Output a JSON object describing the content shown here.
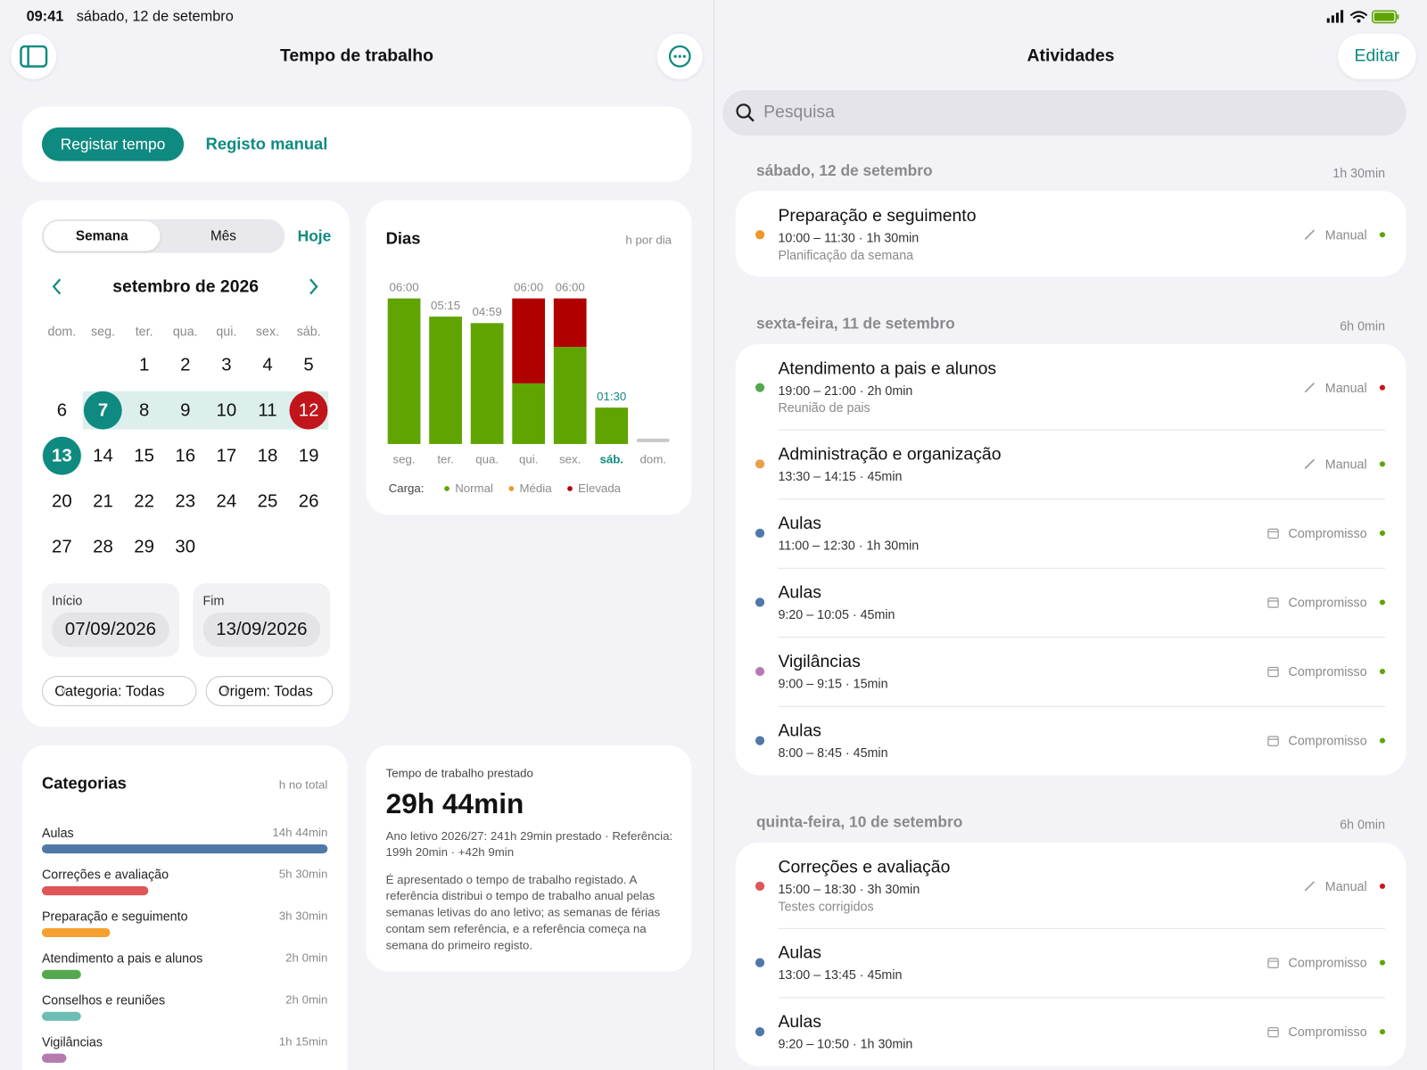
{
  "status_bar": {
    "time": "09:41",
    "date": "sábado, 12 de setembro"
  },
  "left": {
    "title": "Tempo de trabalho",
    "buttons": [
      "Registar tempo",
      "Registo manual"
    ]
  },
  "calendar": {
    "tabs": [
      "Semana",
      "Mês"
    ],
    "today_button": "Hoje",
    "month": "setembro de 2026",
    "weekdays": [
      "dom.",
      "seg.",
      "ter.",
      "qua.",
      "qui.",
      "sex.",
      "sáb."
    ],
    "weeks": [
      [
        null,
        null,
        1,
        2,
        3,
        4,
        5
      ],
      [
        6,
        7,
        8,
        9,
        10,
        11,
        12
      ],
      [
        13,
        14,
        15,
        16,
        17,
        18,
        19
      ],
      [
        20,
        21,
        22,
        23,
        24,
        25,
        26
      ],
      [
        27,
        28,
        29,
        30,
        null,
        null,
        null
      ]
    ],
    "range_start": 7,
    "range_end": 13,
    "today": 12,
    "start_label": "Início",
    "start": "07/09/2026",
    "end_label": "Fim",
    "end": "13/09/2026",
    "filters": [
      "Categoria: Todas",
      "Origem: Todas"
    ]
  },
  "chart_data": [
    {
      "type": "bar",
      "stacked": true,
      "title": "Dias",
      "subtitle": "h por dia",
      "categories": [
        "seg.",
        "ter.",
        "qua.",
        "qui.",
        "sex.",
        "sáb.",
        "dom."
      ],
      "current_index": 5,
      "series": [
        {
          "name": "Normal",
          "color": "#5fa400",
          "values": [
            6,
            5.25,
            4.983,
            2.5,
            4,
            1.5,
            0
          ]
        },
        {
          "name": "Média",
          "color": "#f0962a",
          "values": [
            0,
            0,
            0,
            0,
            0,
            0,
            0
          ]
        },
        {
          "name": "Elevada",
          "color": "#b00000",
          "values": [
            0,
            0,
            0,
            3.5,
            2,
            0,
            0
          ]
        }
      ],
      "value_labels": [
        "06:00",
        "05:15",
        "04:59",
        "06:00",
        "06:00",
        "01:30",
        null
      ],
      "legend_title": "Carga:"
    },
    {
      "type": "bar",
      "orientation": "horizontal",
      "title": "Categorias",
      "subtitle": "h no total",
      "categories": [
        "Aulas",
        "Correções e avaliação",
        "Preparação e seguimento",
        "Atendimento a pais e alunos",
        "Conselhos e reuniões",
        "Vigilâncias"
      ],
      "values": [
        14.733,
        5.5,
        3.5,
        2,
        2,
        1.25
      ],
      "value_labels": [
        "14h 44min",
        "5h 30min",
        "3h 30min",
        "2h 0min",
        "2h 0min",
        "1h 15min"
      ],
      "colors": [
        "#4f78a8",
        "#e05555",
        "#f5a030",
        "#55a84f",
        "#6dbdb5",
        "#b57bb0"
      ]
    }
  ],
  "summary": {
    "label": "Tempo de trabalho prestado",
    "value": "29h 44min",
    "details": "Ano letivo 2026/27: 241h 29min prestado · Referência: 199h 20min · +42h 9min",
    "note": "É apresentado o tempo de trabalho registado. A referência distribui o tempo de trabalho anual pelas semanas letivas do ano letivo; as semanas de férias contam sem referência, e a referência começa na semana do primeiro registo."
  },
  "activities": {
    "title": "Atividades",
    "edit": "Editar",
    "search_placeholder": "Pesquisa",
    "groups": [
      {
        "date": "sábado, 12 de setembro",
        "total": "1h 30min",
        "items": [
          {
            "title": "Preparação e seguimento",
            "time": "10:00 – 11:30 · 1h 30min",
            "note": "Planificação da semana",
            "source": "Manual",
            "color": "#f0962a",
            "load_color": "#5fa400"
          }
        ]
      },
      {
        "date": "sexta-feira, 11 de setembro",
        "total": "6h 0min",
        "items": [
          {
            "title": "Atendimento a pais e alunos",
            "time": "19:00 – 21:00 · 2h 0min",
            "note": "Reunião de pais",
            "source": "Manual",
            "color": "#55a84f",
            "load_color": "#d0101a"
          },
          {
            "title": "Administração e organização",
            "time": "13:30 – 14:15 · 45min",
            "source": "Manual",
            "color": "#e8a04a",
            "load_color": "#5fa400"
          },
          {
            "title": "Aulas",
            "time": "11:00 – 12:30 · 1h 30min",
            "source": "Compromisso",
            "color": "#4f78a8",
            "load_color": "#5fa400"
          },
          {
            "title": "Aulas",
            "time": "9:20 – 10:05 · 45min",
            "source": "Compromisso",
            "color": "#4f78a8",
            "load_color": "#5fa400"
          },
          {
            "title": "Vigilâncias",
            "time": "9:00 – 9:15 · 15min",
            "source": "Compromisso",
            "color": "#b57bb0",
            "load_color": "#5fa400"
          },
          {
            "title": "Aulas",
            "time": "8:00 – 8:45 · 45min",
            "source": "Compromisso",
            "color": "#4f78a8",
            "load_color": "#5fa400"
          }
        ]
      },
      {
        "date": "quinta-feira, 10 de setembro",
        "total": "6h 0min",
        "items": [
          {
            "title": "Correções e avaliação",
            "time": "15:00 – 18:30 · 3h 30min",
            "note": "Testes corrigidos",
            "source": "Manual",
            "color": "#e05555",
            "load_color": "#d0101a"
          },
          {
            "title": "Aulas",
            "time": "13:00 – 13:45 · 45min",
            "source": "Compromisso",
            "color": "#4f78a8",
            "load_color": "#5fa400"
          },
          {
            "title": "Aulas",
            "time": "9:20 – 10:50 · 1h 30min",
            "source": "Compromisso",
            "color": "#4f78a8",
            "load_color": "#5fa400"
          }
        ]
      }
    ]
  }
}
